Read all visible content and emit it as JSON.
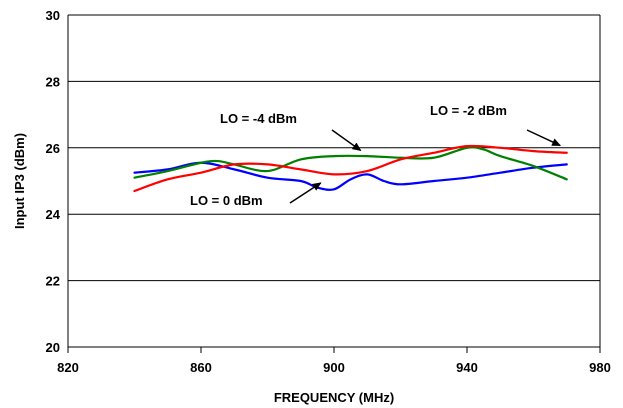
{
  "chart_data": {
    "type": "line",
    "title": "",
    "xlabel": "FREQUENCY (MHz)",
    "ylabel": "Input IP3 (dBm)",
    "xlim": [
      820,
      980
    ],
    "ylim": [
      20,
      30
    ],
    "xticks": [
      820,
      860,
      900,
      940,
      980
    ],
    "yticks": [
      20,
      22,
      24,
      26,
      28,
      30
    ],
    "grid": "horizontal",
    "series": [
      {
        "color": "#0000ff",
        "x": [
          840,
          850,
          860,
          870,
          880,
          890,
          895,
          900,
          905,
          910,
          915,
          920,
          930,
          940,
          950,
          960,
          970
        ],
        "values": [
          25.25,
          25.35,
          25.55,
          25.35,
          25.1,
          25.0,
          24.8,
          24.75,
          25.05,
          25.2,
          25.0,
          24.9,
          25.0,
          25.1,
          25.25,
          25.4,
          25.5
        ]
      },
      {
        "color": "#008000",
        "x": [
          840,
          850,
          860,
          865,
          870,
          880,
          890,
          900,
          910,
          920,
          930,
          940,
          945,
          950,
          960,
          970
        ],
        "values": [
          25.1,
          25.3,
          25.55,
          25.6,
          25.5,
          25.3,
          25.65,
          25.75,
          25.75,
          25.7,
          25.7,
          26.0,
          25.95,
          25.75,
          25.45,
          25.05
        ]
      },
      {
        "color": "#ff0000",
        "x": [
          840,
          850,
          860,
          870,
          880,
          890,
          900,
          910,
          920,
          930,
          940,
          950,
          960,
          970
        ],
        "values": [
          24.7,
          25.05,
          25.25,
          25.5,
          25.5,
          25.35,
          25.2,
          25.3,
          25.65,
          25.85,
          26.05,
          26.0,
          25.9,
          25.85
        ]
      }
    ],
    "annotations": [
      {
        "text": "LO = -4 dBm",
        "arrow_to": [
          908,
          25.8
        ]
      },
      {
        "text": "LO = -2 dBm",
        "arrow_to": [
          968,
          25.95
        ]
      },
      {
        "text": "LO = 0 dBm",
        "arrow_to": [
          896,
          24.82
        ]
      }
    ]
  }
}
